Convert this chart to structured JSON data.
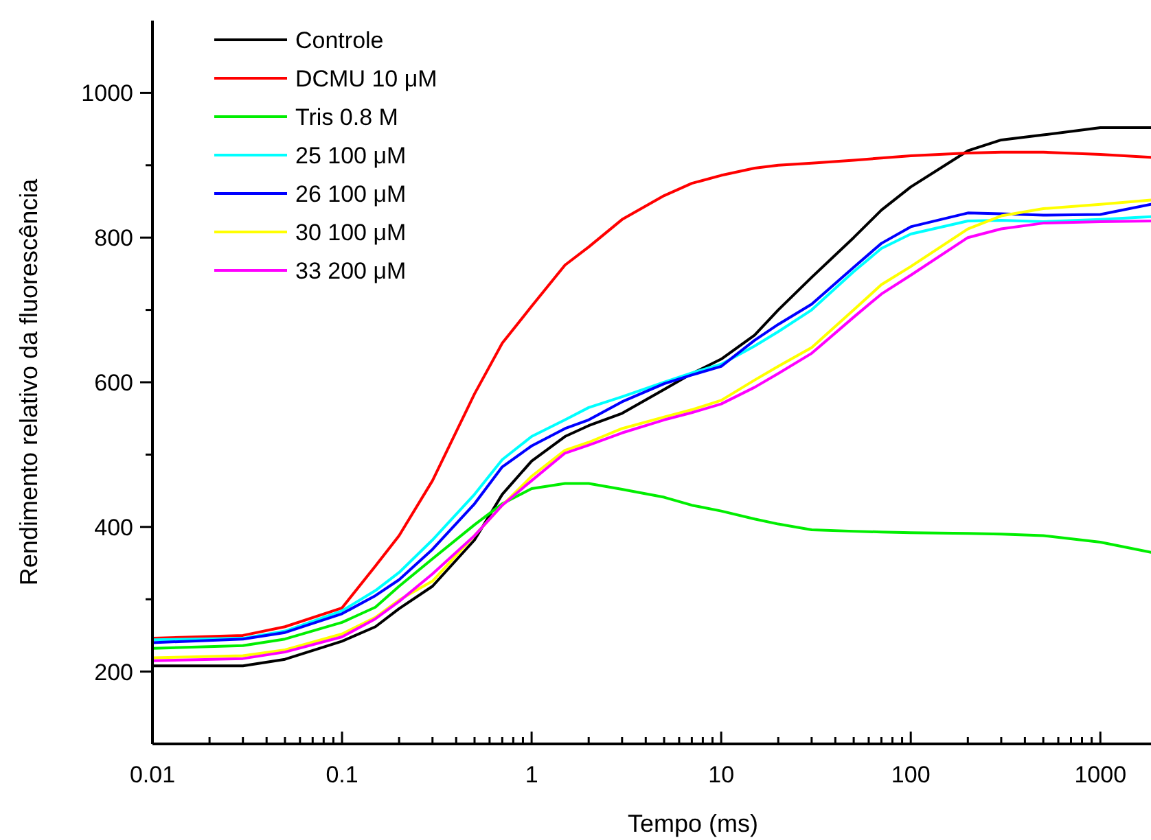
{
  "chart_data": {
    "type": "line",
    "xlabel": "Tempo (ms)",
    "ylabel": "Rendimento relativo da fluorescência",
    "log": "x",
    "legend": "top left",
    "grid": false,
    "line_style": "solid",
    "marker": "none",
    "x": [
      0.01,
      0.03,
      0.05,
      0.1,
      0.15,
      0.2,
      0.3,
      0.5,
      0.7,
      1,
      1.5,
      2,
      3,
      5,
      7,
      10,
      15,
      20,
      30,
      50,
      70,
      100,
      200,
      300,
      500,
      1000,
      1850
    ],
    "xlim": [
      0.01,
      1850
    ],
    "ylim": [
      100,
      1100
    ],
    "xticks": [
      0.01,
      {
        "value": 0.02,
        "label": null
      },
      {
        "value": 0.03,
        "label": null
      },
      {
        "value": 0.04,
        "label": null
      },
      {
        "value": 0.05,
        "label": null
      },
      {
        "value": 0.06,
        "label": null
      },
      {
        "value": 0.07,
        "label": null
      },
      {
        "value": 0.08,
        "label": null
      },
      {
        "value": 0.09,
        "label": null
      },
      0.1,
      {
        "value": 0.2,
        "label": null
      },
      {
        "value": 0.3,
        "label": null
      },
      {
        "value": 0.4,
        "label": null
      },
      {
        "value": 0.5,
        "label": null
      },
      {
        "value": 0.6,
        "label": null
      },
      {
        "value": 0.7,
        "label": null
      },
      {
        "value": 0.8,
        "label": null
      },
      {
        "value": 0.9,
        "label": null
      },
      1,
      {
        "value": 2,
        "label": null
      },
      {
        "value": 3,
        "label": null
      },
      {
        "value": 4,
        "label": null
      },
      {
        "value": 5,
        "label": null
      },
      {
        "value": 6,
        "label": null
      },
      {
        "value": 7,
        "label": null
      },
      {
        "value": 8,
        "label": null
      },
      {
        "value": 9,
        "label": null
      },
      10,
      {
        "value": 20,
        "label": null
      },
      {
        "value": 30,
        "label": null
      },
      {
        "value": 40,
        "label": null
      },
      {
        "value": 50,
        "label": null
      },
      {
        "value": 60,
        "label": null
      },
      {
        "value": 70,
        "label": null
      },
      {
        "value": 80,
        "label": null
      },
      {
        "value": 90,
        "label": null
      },
      100,
      {
        "value": 200,
        "label": null
      },
      {
        "value": 300,
        "label": null
      },
      {
        "value": 400,
        "label": null
      },
      {
        "value": 500,
        "label": null
      },
      {
        "value": 600,
        "label": null
      },
      {
        "value": 700,
        "label": null
      },
      {
        "value": 800,
        "label": null
      },
      {
        "value": 900,
        "label": null
      },
      1000
    ],
    "yticks": [
      200,
      {
        "value": 300,
        "label": null
      },
      400,
      {
        "value": 500,
        "label": null
      },
      600,
      {
        "value": 700,
        "label": null
      },
      800,
      {
        "value": 900,
        "label": null
      },
      1000
    ],
    "series": [
      {
        "name": "Controle",
        "color": "#000000",
        "values": [
          208,
          208,
          217,
          242,
          262,
          287,
          318,
          382,
          445,
          491,
          525,
          540,
          557,
          590,
          612,
          632,
          665,
          700,
          745,
          800,
          838,
          870,
          920,
          935,
          942,
          952,
          952
        ]
      },
      {
        "name": "DCMU 10 μM",
        "color": "#ff0000",
        "values": [
          246,
          250,
          262,
          288,
          346,
          388,
          464,
          584,
          654,
          705,
          762,
          787,
          825,
          858,
          875,
          886,
          896,
          900,
          903,
          907,
          910,
          913,
          917,
          918,
          918,
          915,
          911
        ]
      },
      {
        "name": "Tris 0.8 M",
        "color": "#00ee00",
        "values": [
          232,
          236,
          245,
          268,
          289,
          318,
          356,
          403,
          432,
          453,
          460,
          460,
          452,
          441,
          430,
          422,
          411,
          404,
          396,
          394,
          393,
          392,
          391,
          390,
          388,
          379,
          365
        ]
      },
      {
        "name": "25 100 μM",
        "color": "#00ffff",
        "values": [
          244,
          246,
          256,
          284,
          312,
          337,
          382,
          445,
          493,
          525,
          548,
          565,
          580,
          600,
          613,
          625,
          650,
          670,
          700,
          753,
          785,
          805,
          823,
          824,
          822,
          825,
          829
        ]
      },
      {
        "name": "26 100 μM",
        "color": "#0000ff",
        "values": [
          240,
          245,
          254,
          280,
          305,
          327,
          369,
          432,
          483,
          512,
          536,
          548,
          573,
          598,
          610,
          622,
          658,
          680,
          708,
          759,
          792,
          815,
          834,
          833,
          831,
          832,
          846
        ]
      },
      {
        "name": "30 100 μM",
        "color": "#ffff00",
        "values": [
          219,
          222,
          230,
          252,
          275,
          299,
          325,
          388,
          430,
          470,
          506,
          517,
          536,
          552,
          562,
          575,
          603,
          622,
          648,
          700,
          735,
          760,
          812,
          830,
          840,
          846,
          852
        ]
      },
      {
        "name": "33 200 μM",
        "color": "#ff00ff",
        "values": [
          215,
          218,
          227,
          248,
          273,
          297,
          335,
          388,
          430,
          464,
          502,
          513,
          530,
          548,
          558,
          570,
          593,
          612,
          640,
          690,
          722,
          748,
          800,
          812,
          820,
          822,
          823
        ]
      }
    ]
  }
}
